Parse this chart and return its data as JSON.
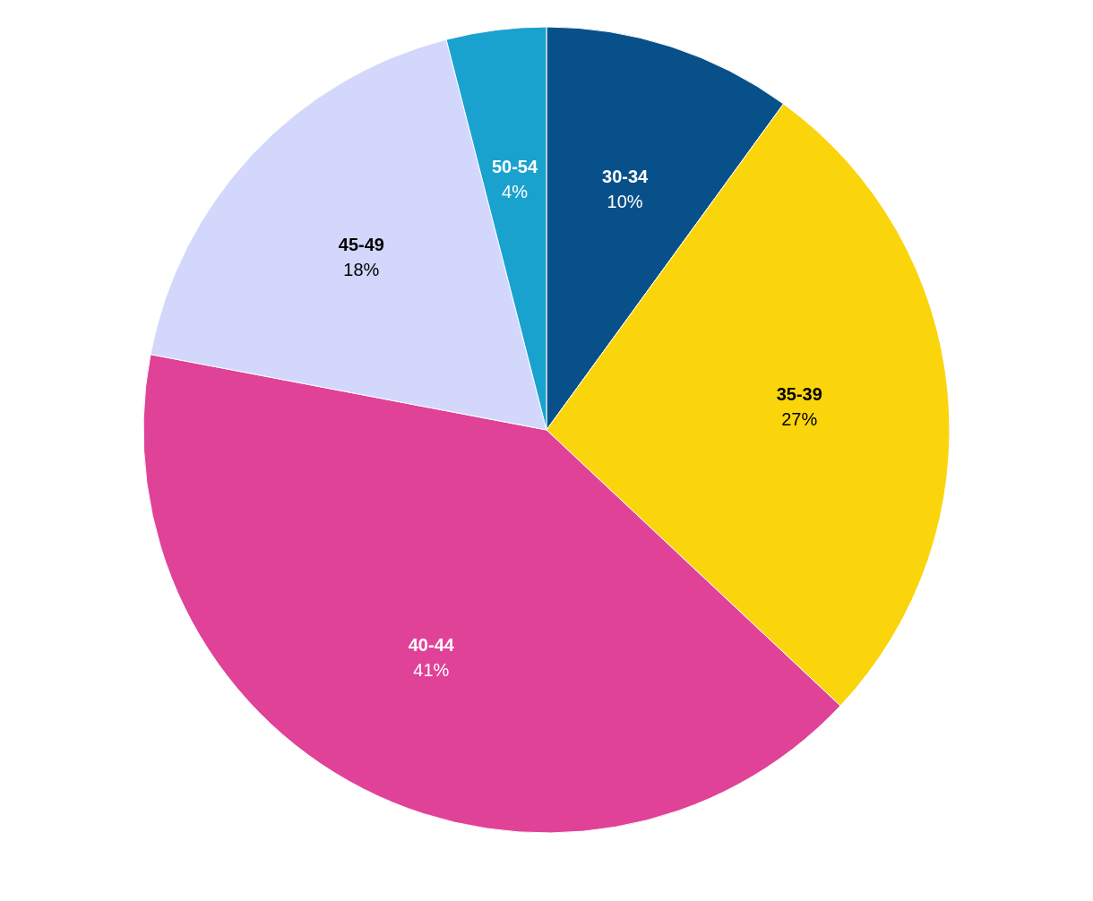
{
  "chart_data": {
    "type": "pie",
    "categories": [
      "30-34",
      "35-39",
      "40-44",
      "45-49",
      "50-54"
    ],
    "values": [
      10,
      27,
      41,
      18,
      4
    ],
    "value_labels": [
      "10%",
      "27%",
      "41%",
      "18%",
      "4%"
    ],
    "colors": [
      "#08508a",
      "#fad50c",
      "#e04297",
      "#d2d7fb",
      "#1aa2cf"
    ]
  }
}
